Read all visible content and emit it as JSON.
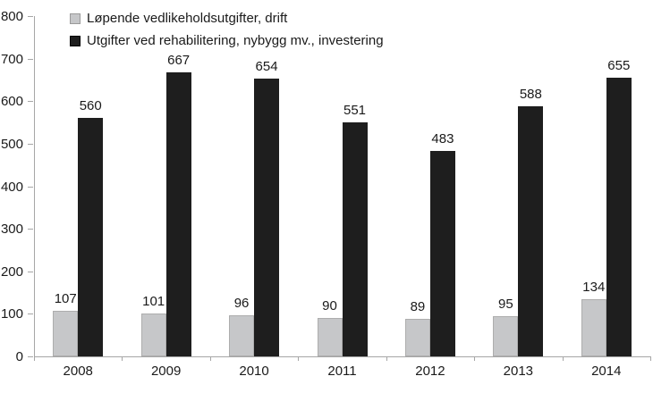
{
  "chart_data": {
    "type": "bar",
    "title": "",
    "xlabel": "",
    "ylabel": "",
    "categories": [
      "2008",
      "2009",
      "2010",
      "2011",
      "2012",
      "2013",
      "2014"
    ],
    "series": [
      {
        "name": "Løpende vedlikeholdsutgifter, drift",
        "color": "#c6c7c9",
        "border_color": "#adadad",
        "values": [
          107,
          101,
          96,
          90,
          89,
          95,
          134
        ]
      },
      {
        "name": "Utgifter ved rehabilitering, nybygg mv., investering",
        "color": "#1e1e1e",
        "border_color": "#1e1e1e",
        "values": [
          560,
          667,
          654,
          551,
          483,
          588,
          655
        ]
      }
    ],
    "ylim": [
      0,
      800
    ],
    "ytick_step": 100,
    "ytick_labels": [
      "0",
      "100",
      "200",
      "300",
      "400",
      "500",
      "600",
      "700",
      "800"
    ],
    "grid": false,
    "legend_position": "top-left",
    "data_labels": true,
    "axis_color": "#a6a6a6",
    "text_color": "#1a1a1a",
    "background_color": "#ffffff"
  }
}
